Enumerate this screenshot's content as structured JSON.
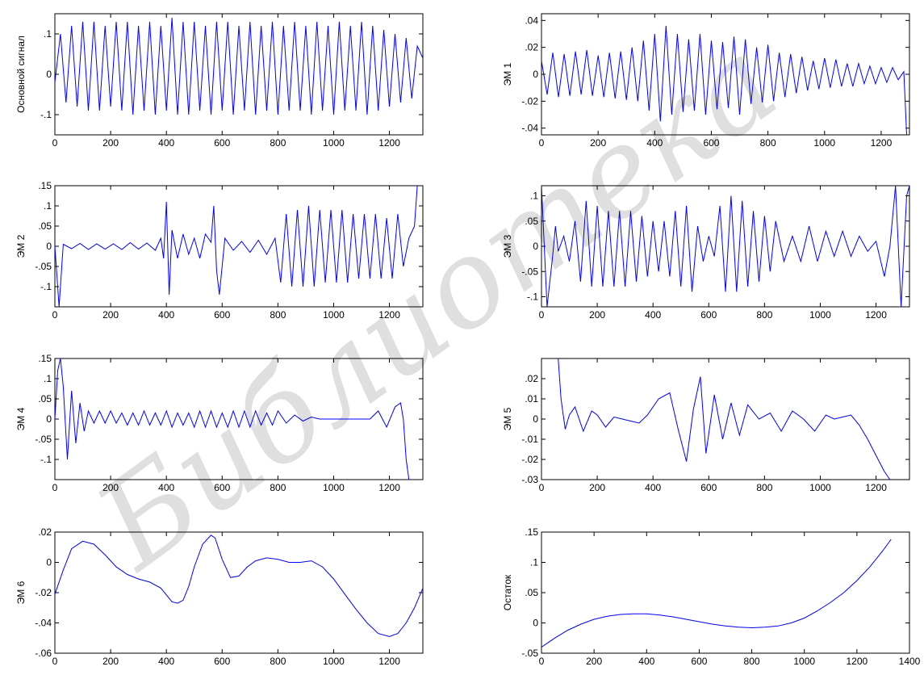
{
  "watermark": "Библиотека",
  "series_color": "#0000ff",
  "chart_data": [
    {
      "type": "line",
      "ylabel": "Основной сигнал",
      "xlim": [
        0,
        1320
      ],
      "ylim": [
        -0.15,
        0.15
      ],
      "xticks": [
        0,
        200,
        400,
        600,
        800,
        1000,
        1200
      ],
      "yticks": [
        -0.1,
        0,
        0.1
      ],
      "x": [
        0,
        20,
        40,
        60,
        80,
        100,
        120,
        140,
        160,
        180,
        200,
        220,
        240,
        260,
        280,
        300,
        320,
        340,
        360,
        380,
        400,
        420,
        440,
        460,
        480,
        500,
        520,
        540,
        560,
        580,
        600,
        620,
        640,
        660,
        680,
        700,
        720,
        740,
        760,
        780,
        800,
        820,
        840,
        860,
        880,
        900,
        920,
        940,
        960,
        980,
        1000,
        1020,
        1040,
        1060,
        1080,
        1100,
        1120,
        1140,
        1160,
        1180,
        1200,
        1220,
        1240,
        1260,
        1280,
        1300,
        1320
      ],
      "y": [
        -0.02,
        0.1,
        -0.07,
        0.12,
        -0.08,
        0.13,
        -0.09,
        0.13,
        -0.09,
        0.12,
        -0.08,
        0.13,
        -0.09,
        0.13,
        -0.1,
        0.12,
        -0.09,
        0.13,
        -0.1,
        0.12,
        -0.09,
        0.14,
        -0.1,
        0.13,
        -0.1,
        0.13,
        -0.09,
        0.12,
        -0.1,
        0.13,
        -0.09,
        0.13,
        -0.1,
        0.12,
        -0.09,
        0.13,
        -0.1,
        0.12,
        -0.09,
        0.13,
        -0.1,
        0.12,
        -0.09,
        0.13,
        -0.09,
        0.12,
        -0.1,
        0.13,
        -0.09,
        0.12,
        -0.1,
        0.13,
        -0.09,
        0.12,
        -0.09,
        0.13,
        -0.1,
        0.12,
        -0.09,
        0.11,
        -0.08,
        0.1,
        -0.07,
        0.09,
        -0.06,
        0.07,
        0.04
      ]
    },
    {
      "type": "line",
      "ylabel": "ЭМ 1",
      "xlim": [
        0,
        1300
      ],
      "ylim": [
        -0.045,
        0.045
      ],
      "xticks": [
        0,
        200,
        400,
        600,
        800,
        1000,
        1200
      ],
      "yticks": [
        -0.04,
        -0.02,
        0,
        0.02,
        0.04
      ],
      "x": [
        0,
        20,
        40,
        60,
        80,
        100,
        120,
        140,
        160,
        180,
        200,
        220,
        240,
        260,
        280,
        300,
        320,
        340,
        360,
        380,
        400,
        420,
        440,
        460,
        480,
        500,
        520,
        540,
        560,
        580,
        600,
        620,
        640,
        660,
        680,
        700,
        720,
        740,
        760,
        780,
        800,
        820,
        840,
        860,
        880,
        900,
        920,
        940,
        960,
        980,
        1000,
        1020,
        1040,
        1060,
        1080,
        1100,
        1120,
        1140,
        1160,
        1180,
        1200,
        1220,
        1240,
        1260,
        1280,
        1290
      ],
      "y": [
        0.01,
        -0.015,
        0.016,
        -0.017,
        0.015,
        -0.016,
        0.017,
        -0.015,
        0.018,
        -0.016,
        0.014,
        -0.017,
        0.016,
        -0.018,
        0.017,
        -0.019,
        0.02,
        -0.02,
        0.025,
        -0.027,
        0.03,
        -0.035,
        0.036,
        -0.03,
        0.03,
        -0.028,
        0.026,
        -0.027,
        0.03,
        -0.03,
        0.025,
        -0.026,
        0.024,
        -0.025,
        0.028,
        -0.03,
        0.026,
        -0.022,
        0.02,
        -0.021,
        0.022,
        -0.02,
        0.016,
        -0.017,
        0.015,
        -0.014,
        0.013,
        -0.012,
        0.01,
        -0.011,
        0.012,
        -0.01,
        0.011,
        -0.009,
        0.008,
        -0.009,
        0.008,
        -0.007,
        0.006,
        -0.007,
        0.005,
        -0.006,
        0.005,
        -0.004,
        0.002,
        -0.045
      ]
    },
    {
      "type": "line",
      "ylabel": "ЭМ 2",
      "xlim": [
        0,
        1320
      ],
      "ylim": [
        -0.15,
        0.15
      ],
      "xticks": [
        0,
        200,
        400,
        600,
        800,
        1000,
        1200
      ],
      "yticks": [
        -0.1,
        -0.05,
        0,
        0.05,
        0.1,
        0.15
      ],
      "x": [
        0,
        15,
        30,
        60,
        90,
        120,
        150,
        180,
        210,
        240,
        270,
        300,
        330,
        360,
        380,
        390,
        400,
        410,
        420,
        440,
        460,
        480,
        500,
        520,
        540,
        560,
        570,
        580,
        590,
        610,
        640,
        670,
        700,
        730,
        760,
        790,
        810,
        830,
        850,
        870,
        890,
        910,
        930,
        950,
        970,
        990,
        1010,
        1030,
        1050,
        1070,
        1090,
        1110,
        1130,
        1150,
        1170,
        1190,
        1210,
        1230,
        1250,
        1270,
        1290,
        1300
      ],
      "y": [
        0,
        -0.15,
        0.005,
        -0.006,
        0.007,
        -0.008,
        0.006,
        -0.007,
        0.006,
        -0.008,
        0.009,
        -0.007,
        0.008,
        -0.01,
        0.02,
        -0.03,
        0.11,
        -0.12,
        0.04,
        -0.03,
        0.03,
        -0.02,
        0.02,
        -0.03,
        0.03,
        0.01,
        0.1,
        -0.06,
        -0.12,
        0.02,
        -0.01,
        0.012,
        -0.015,
        0.015,
        -0.02,
        0.02,
        -0.09,
        0.08,
        -0.1,
        0.09,
        -0.1,
        0.1,
        -0.1,
        0.09,
        -0.09,
        0.09,
        -0.09,
        0.09,
        -0.09,
        0.08,
        -0.08,
        0.08,
        -0.08,
        0.08,
        -0.08,
        0.07,
        -0.08,
        0.08,
        -0.05,
        0.02,
        0.05,
        0.15
      ]
    },
    {
      "type": "line",
      "ylabel": "ЭМ 3",
      "xlim": [
        0,
        1320
      ],
      "ylim": [
        -0.12,
        0.12
      ],
      "xticks": [
        0,
        200,
        400,
        600,
        800,
        1000,
        1200
      ],
      "yticks": [
        -0.1,
        -0.05,
        0,
        0.05,
        0.1
      ],
      "x": [
        0,
        20,
        40,
        50,
        60,
        80,
        100,
        120,
        140,
        160,
        180,
        200,
        220,
        240,
        260,
        280,
        300,
        320,
        340,
        360,
        380,
        400,
        420,
        440,
        460,
        480,
        500,
        520,
        540,
        560,
        580,
        600,
        620,
        640,
        660,
        680,
        700,
        720,
        740,
        760,
        780,
        800,
        820,
        840,
        870,
        900,
        930,
        960,
        990,
        1020,
        1050,
        1080,
        1110,
        1140,
        1170,
        1200,
        1230,
        1250,
        1270,
        1290,
        1310,
        1320
      ],
      "y": [
        0.12,
        -0.12,
        -0.02,
        0.04,
        -0.01,
        0.02,
        -0.03,
        0.05,
        -0.07,
        0.09,
        -0.08,
        0.08,
        -0.08,
        0.07,
        -0.08,
        0.07,
        -0.08,
        0.07,
        -0.07,
        0.06,
        -0.06,
        0.05,
        -0.05,
        0.05,
        -0.06,
        0.07,
        -0.08,
        0.08,
        -0.09,
        0.04,
        -0.03,
        0.02,
        -0.02,
        0.08,
        -0.09,
        0.1,
        -0.09,
        0.09,
        -0.08,
        0.07,
        -0.07,
        0.06,
        -0.05,
        0.05,
        -0.03,
        0.02,
        -0.03,
        0.04,
        -0.03,
        0.03,
        -0.02,
        0.03,
        -0.02,
        0.02,
        -0.01,
        0.01,
        -0.06,
        0.0,
        0.12,
        -0.12,
        0.1,
        0.12
      ]
    },
    {
      "type": "line",
      "ylabel": "ЭМ 4",
      "xlim": [
        0,
        1320
      ],
      "ylim": [
        -0.15,
        0.15
      ],
      "xticks": [
        0,
        200,
        400,
        600,
        800,
        1000,
        1200
      ],
      "yticks": [
        -0.1,
        -0.05,
        0,
        0.05,
        0.1,
        0.15
      ],
      "x": [
        0,
        10,
        20,
        30,
        45,
        60,
        75,
        90,
        105,
        120,
        140,
        160,
        180,
        200,
        220,
        240,
        260,
        280,
        300,
        320,
        340,
        360,
        380,
        400,
        420,
        440,
        460,
        480,
        500,
        520,
        540,
        560,
        580,
        600,
        620,
        640,
        660,
        680,
        700,
        720,
        740,
        760,
        780,
        800,
        830,
        860,
        890,
        920,
        950,
        980,
        1010,
        1040,
        1070,
        1100,
        1130,
        1160,
        1190,
        1220,
        1240,
        1250,
        1260,
        1270
      ],
      "y": [
        0.0,
        0.12,
        0.15,
        0.08,
        -0.1,
        0.07,
        -0.06,
        0.04,
        -0.03,
        0.02,
        -0.01,
        0.02,
        -0.01,
        0.02,
        -0.01,
        0.015,
        -0.015,
        0.015,
        -0.015,
        0.02,
        -0.015,
        0.015,
        -0.015,
        0.02,
        -0.02,
        0.015,
        -0.015,
        0.015,
        -0.02,
        0.02,
        -0.02,
        0.02,
        -0.02,
        0.015,
        -0.02,
        0.02,
        -0.02,
        0.02,
        -0.02,
        0.02,
        -0.015,
        0.015,
        -0.015,
        0.02,
        -0.01,
        0.01,
        -0.005,
        0.005,
        0.0,
        0.0,
        0.0,
        0.0,
        0.0,
        0.0,
        0.0,
        0.02,
        -0.02,
        0.03,
        0.04,
        0.0,
        -0.1,
        -0.15
      ]
    },
    {
      "type": "line",
      "ylabel": "ЭМ 5",
      "xlim": [
        0,
        1320
      ],
      "ylim": [
        -0.03,
        0.03
      ],
      "xticks": [
        0,
        200,
        400,
        600,
        800,
        1000,
        1200
      ],
      "yticks": [
        -0.03,
        -0.02,
        -0.01,
        0,
        0.01,
        0.02
      ],
      "x": [
        60,
        70,
        85,
        100,
        120,
        150,
        180,
        200,
        230,
        260,
        290,
        320,
        350,
        380,
        420,
        460,
        490,
        520,
        545,
        570,
        590,
        620,
        650,
        680,
        710,
        740,
        780,
        820,
        860,
        900,
        940,
        980,
        1020,
        1050,
        1080,
        1110,
        1140,
        1170,
        1200,
        1230,
        1250
      ],
      "y": [
        0.03,
        0.01,
        -0.005,
        0.002,
        0.006,
        -0.006,
        0.004,
        0.002,
        -0.004,
        0.001,
        0.0,
        -0.001,
        -0.002,
        0.002,
        0.01,
        0.013,
        -0.005,
        -0.021,
        0.005,
        0.021,
        -0.017,
        0.012,
        -0.01,
        0.008,
        -0.008,
        0.007,
        0.0,
        0.003,
        -0.006,
        0.004,
        0.0,
        -0.006,
        0.002,
        0.0,
        0.001,
        0.002,
        -0.003,
        -0.01,
        -0.018,
        -0.026,
        -0.03
      ]
    },
    {
      "type": "line",
      "ylabel": "ЭМ 6",
      "xlim": [
        0,
        1320
      ],
      "ylim": [
        -0.06,
        0.02
      ],
      "xticks": [
        0,
        200,
        400,
        600,
        800,
        1000,
        1200
      ],
      "yticks": [
        -0.06,
        -0.04,
        -0.02,
        0,
        0.02
      ],
      "x": [
        0,
        30,
        60,
        100,
        140,
        180,
        220,
        260,
        300,
        340,
        380,
        420,
        440,
        460,
        480,
        500,
        530,
        560,
        575,
        600,
        630,
        660,
        690,
        720,
        760,
        800,
        840,
        880,
        920,
        960,
        1000,
        1040,
        1080,
        1120,
        1160,
        1200,
        1230,
        1260,
        1290,
        1320
      ],
      "y": [
        -0.021,
        -0.005,
        0.009,
        0.014,
        0.012,
        0.005,
        -0.003,
        -0.008,
        -0.011,
        -0.013,
        -0.017,
        -0.026,
        -0.027,
        -0.025,
        -0.016,
        -0.003,
        0.012,
        0.018,
        0.016,
        0.002,
        -0.01,
        -0.009,
        -0.003,
        0.001,
        0.003,
        0.002,
        0.0,
        0.0,
        0.001,
        -0.003,
        -0.011,
        -0.021,
        -0.031,
        -0.04,
        -0.047,
        -0.049,
        -0.047,
        -0.04,
        -0.03,
        -0.017
      ]
    },
    {
      "type": "line",
      "ylabel": "Остаток",
      "xlim": [
        0,
        1400
      ],
      "ylim": [
        -0.05,
        0.15
      ],
      "xticks": [
        0,
        200,
        400,
        600,
        800,
        1000,
        1200,
        1400
      ],
      "yticks": [
        -0.05,
        0,
        0.05,
        0.1,
        0.15
      ],
      "x": [
        0,
        50,
        100,
        150,
        200,
        250,
        300,
        350,
        400,
        450,
        500,
        550,
        600,
        650,
        700,
        750,
        800,
        850,
        900,
        950,
        1000,
        1050,
        1100,
        1150,
        1200,
        1250,
        1300,
        1330
      ],
      "y": [
        -0.04,
        -0.025,
        -0.012,
        -0.002,
        0.006,
        0.011,
        0.014,
        0.015,
        0.015,
        0.013,
        0.01,
        0.006,
        0.002,
        -0.002,
        -0.005,
        -0.007,
        -0.008,
        -0.007,
        -0.005,
        0.0,
        0.008,
        0.02,
        0.034,
        0.05,
        0.07,
        0.093,
        0.12,
        0.138
      ]
    }
  ]
}
